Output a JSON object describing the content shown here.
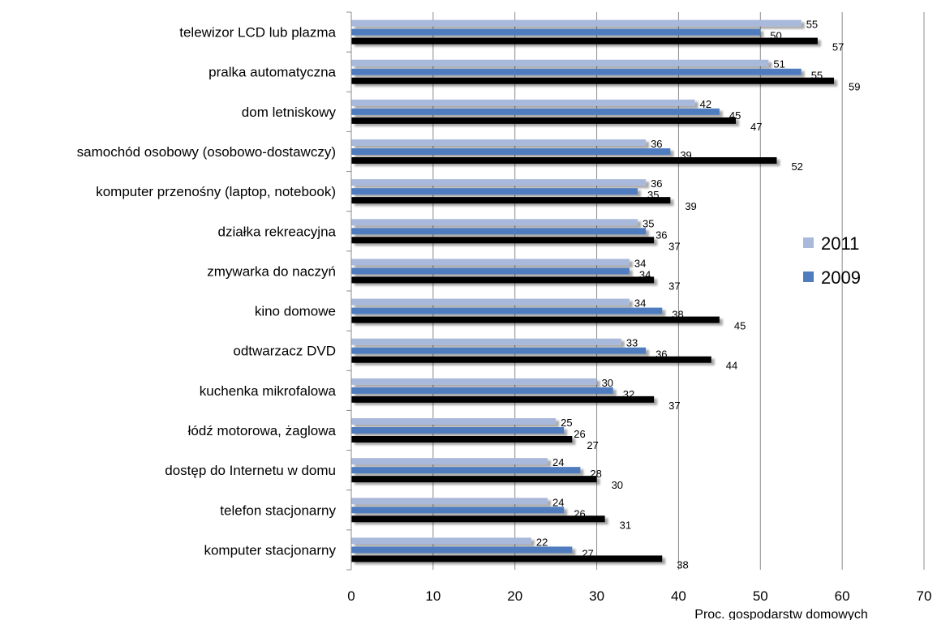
{
  "chart_data": {
    "type": "bar",
    "orientation": "horizontal",
    "title": "",
    "xlabel": "Proc. gospodarstw domowych",
    "ylabel": "",
    "xlim": [
      0,
      70
    ],
    "xticks": [
      "0",
      "10",
      "20",
      "30",
      "40",
      "50",
      "60",
      "70"
    ],
    "grid": true,
    "legend_position": "right",
    "categories": [
      "telewizor LCD lub plazma",
      "pralka automatyczna",
      "dom letniskowy",
      "samochód osobowy (osobowo-dostawczy)",
      "komputer przenośny (laptop, notebook)",
      "działka rekreacyjna",
      "zmywarka do naczyń",
      "kino domowe",
      "odtwarzacz DVD",
      "kuchenka mikrofalowa",
      "łódź motorowa, żaglowa",
      "dostęp do Internetu w domu",
      "telefon stacjonarny",
      "komputer stacjonarny"
    ],
    "series": [
      {
        "name": "2011",
        "color": "#a9b9db",
        "values": [
          55,
          51,
          42,
          36,
          36,
          35,
          34,
          34,
          33,
          30,
          25,
          24,
          24,
          22
        ]
      },
      {
        "name": "2009",
        "color": "#4f7cbf",
        "values": [
          50,
          55,
          45,
          39,
          35,
          36,
          34,
          38,
          36,
          32,
          26,
          28,
          26,
          27
        ]
      },
      {
        "name": "",
        "color": "#000000",
        "values": [
          57,
          59,
          47,
          52,
          39,
          37,
          37,
          45,
          44,
          37,
          27,
          30,
          31,
          38
        ]
      }
    ]
  }
}
